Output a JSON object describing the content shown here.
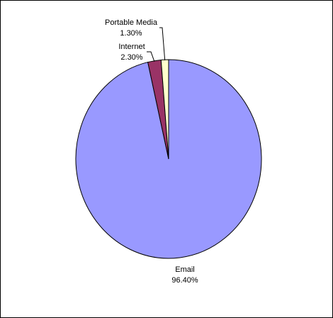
{
  "chart_data": {
    "type": "pie",
    "title": "",
    "slices": [
      {
        "name": "Email",
        "value": 96.4,
        "value_label": "96.40%",
        "color": "#9999ff"
      },
      {
        "name": "Internet",
        "value": 2.3,
        "value_label": "2.30%",
        "color": "#993366"
      },
      {
        "name": "Portable Media",
        "value": 1.3,
        "value_label": "1.30%",
        "color": "#ffffcc"
      }
    ],
    "start": "12 o'clock, clockwise from Email",
    "legend": "none",
    "outline_color": "#000000"
  }
}
